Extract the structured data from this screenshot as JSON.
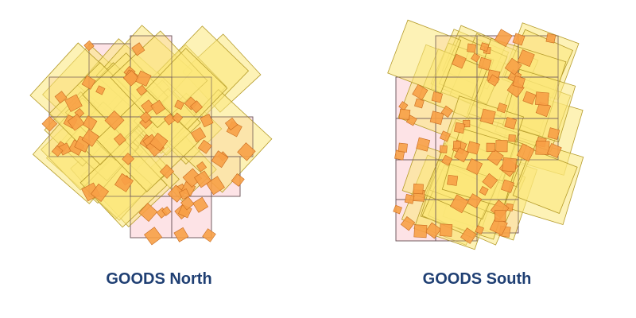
{
  "fields": [
    {
      "label": "GOODS North"
    },
    {
      "label": "GOODS South"
    }
  ],
  "colors": {
    "tile_fill": "#fde3e6",
    "tile_stroke": "#6f5a5e",
    "overlay_fill": "#fbe77a",
    "overlay_stroke": "#b59b2a",
    "patch_fill": "#f7a046",
    "patch_stroke": "#c86a1e",
    "label": "#1f3f73"
  }
}
